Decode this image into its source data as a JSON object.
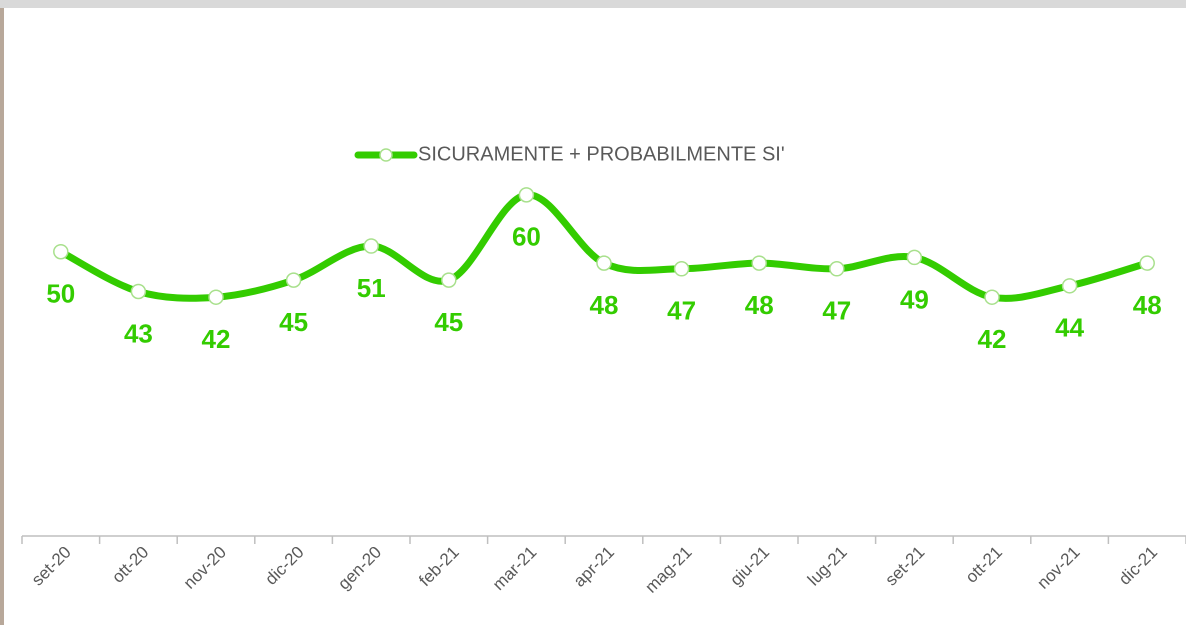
{
  "chart_data": {
    "type": "line",
    "categories": [
      "set-20",
      "ott-20",
      "nov-20",
      "dic-20",
      "gen-20",
      "feb-21",
      "mar-21",
      "apr-21",
      "mag-21",
      "giu-21",
      "lug-21",
      "set-21",
      "ott-21",
      "nov-21",
      "dic-21"
    ],
    "series": [
      {
        "name": "SICURAMENTE + PROBABILMENTE SI'",
        "color": "#33cc00",
        "values": [
          50,
          43,
          42,
          45,
          51,
          45,
          60,
          48,
          47,
          48,
          47,
          49,
          42,
          44,
          48
        ]
      }
    ],
    "ylim": [
      0,
      70
    ],
    "legend": "top",
    "smooth": true,
    "data_labels": true
  }
}
